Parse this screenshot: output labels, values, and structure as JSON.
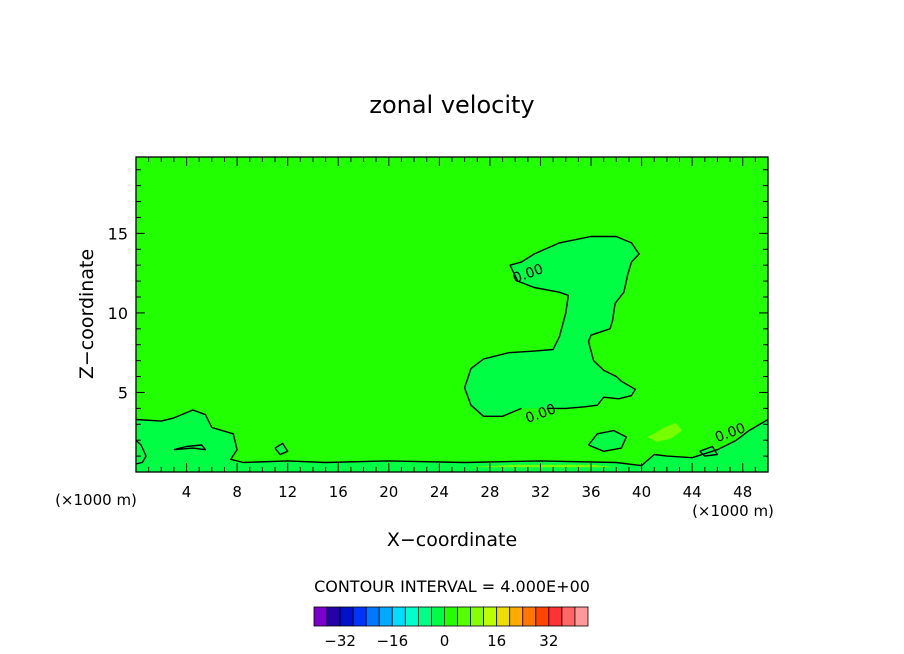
{
  "chart_data": {
    "type": "contour",
    "title": "zonal velocity",
    "xlabel": "X−coordinate",
    "ylabel": "Z−coordinate",
    "x_unit": "(×1000 m)",
    "xlim": [
      0,
      50
    ],
    "ylim": [
      0,
      19.8
    ],
    "xticks": [
      4,
      8,
      12,
      16,
      20,
      24,
      28,
      32,
      36,
      40,
      44,
      48
    ],
    "yticks": [
      5,
      10,
      15
    ],
    "background_field_color": "#22ff00",
    "contour_interval_text": "CONTOUR INTERVAL = 4.000E+00",
    "contour_labels": [
      {
        "text": "0.00",
        "x": 31.0,
        "z": 12.5
      },
      {
        "text": "0.00",
        "x": 32.0,
        "z": 3.7
      },
      {
        "text": "0.00",
        "x": 47.0,
        "z": 2.5
      }
    ],
    "regions": [
      {
        "level": 2,
        "color": "#00ff44",
        "points": [
          [
            30.5,
            4.0
          ],
          [
            29,
            3.5
          ],
          [
            27.5,
            3.5
          ],
          [
            26.5,
            4.2
          ],
          [
            26.0,
            5.3
          ],
          [
            26.5,
            6.5
          ],
          [
            27.5,
            7.1
          ],
          [
            29.5,
            7.5
          ],
          [
            31.5,
            7.6
          ],
          [
            33,
            7.7
          ],
          [
            33.5,
            8.5
          ],
          [
            34,
            10
          ],
          [
            34.2,
            11.1
          ],
          [
            33.5,
            11.3
          ],
          [
            31.5,
            11.6
          ],
          [
            30.2,
            12.0
          ],
          [
            29.6,
            13
          ],
          [
            30.5,
            13.2
          ],
          [
            31.5,
            13.7
          ],
          [
            33.5,
            14.4
          ],
          [
            36,
            14.8
          ],
          [
            38,
            14.8
          ],
          [
            39.2,
            14.4
          ],
          [
            39.8,
            13.7
          ],
          [
            39.2,
            13.2
          ],
          [
            38.9,
            12.4
          ],
          [
            38.6,
            11.3
          ],
          [
            37.9,
            10.6
          ],
          [
            37.7,
            9.5
          ],
          [
            37.5,
            9.0
          ],
          [
            36,
            8.6
          ],
          [
            35.8,
            8.2
          ],
          [
            36.2,
            7.0
          ],
          [
            37,
            6.4
          ],
          [
            38,
            6.0
          ],
          [
            38.4,
            5.7
          ],
          [
            39.5,
            5.2
          ],
          [
            39.2,
            4.8
          ],
          [
            38.2,
            4.6
          ],
          [
            37,
            4.7
          ],
          [
            36.5,
            4.2
          ],
          [
            35.5,
            4.1
          ],
          [
            34,
            4.0
          ],
          [
            32.5,
            4.0
          ]
        ]
      },
      {
        "level": 2,
        "color": "#00ff44",
        "points": [
          [
            0,
            3.3
          ],
          [
            2,
            3.2
          ],
          [
            3,
            3.4
          ],
          [
            4.5,
            3.9
          ],
          [
            5.5,
            3.6
          ],
          [
            6,
            2.8
          ],
          [
            7.7,
            2.4
          ],
          [
            8,
            1.4
          ],
          [
            7.5,
            0.8
          ],
          [
            8.5,
            0.6
          ],
          [
            12,
            0.7
          ],
          [
            15,
            0.6
          ],
          [
            20,
            0.7
          ],
          [
            26,
            0.6
          ],
          [
            32,
            0.7
          ],
          [
            38,
            0.6
          ],
          [
            40,
            0.4
          ],
          [
            41,
            1.1
          ],
          [
            42,
            1.0
          ],
          [
            44,
            0.9
          ],
          [
            46,
            1.4
          ],
          [
            47.5,
            2.0
          ],
          [
            48.5,
            2.6
          ],
          [
            50,
            3.3
          ],
          [
            50,
            0
          ],
          [
            0,
            0
          ]
        ]
      },
      {
        "level": 2,
        "color": "#00ff44",
        "points": [
          [
            35.8,
            1.7
          ],
          [
            36.5,
            2.4
          ],
          [
            37.8,
            2.6
          ],
          [
            38.8,
            2.2
          ],
          [
            38.4,
            1.5
          ],
          [
            37,
            1.3
          ]
        ]
      },
      {
        "level": 2,
        "color": "#00ff44",
        "points": [
          [
            11,
            1.5
          ],
          [
            11.6,
            1.8
          ],
          [
            12,
            1.3
          ],
          [
            11.4,
            1.1
          ]
        ]
      },
      {
        "level": 2,
        "color": "#00ff44",
        "points": [
          [
            44.6,
            1.3
          ],
          [
            45.6,
            1.6
          ],
          [
            46,
            1.1
          ],
          [
            45,
            1.0
          ]
        ]
      },
      {
        "level": 6,
        "color": "#77ff00",
        "points": [
          [
            40.5,
            2.2
          ],
          [
            41.8,
            2.8
          ],
          [
            42.7,
            3.1
          ],
          [
            43.2,
            2.6
          ],
          [
            42.3,
            2.1
          ],
          [
            41.2,
            1.9
          ]
        ]
      },
      {
        "level": 6,
        "color": "#77ff00",
        "points": [
          [
            26,
            0.3
          ],
          [
            30,
            0.45
          ],
          [
            36,
            0.45
          ],
          [
            38,
            0.3
          ]
        ]
      }
    ],
    "contour_lines": [
      {
        "level": 0,
        "points": [
          [
            30.5,
            4.0
          ],
          [
            29,
            3.5
          ],
          [
            27.5,
            3.5
          ],
          [
            26.5,
            4.2
          ],
          [
            26.0,
            5.3
          ],
          [
            26.5,
            6.5
          ],
          [
            27.5,
            7.1
          ],
          [
            29.5,
            7.5
          ],
          [
            31.5,
            7.6
          ],
          [
            33,
            7.7
          ],
          [
            33.5,
            8.5
          ],
          [
            34,
            10
          ],
          [
            34.2,
            11.1
          ],
          [
            33.5,
            11.3
          ],
          [
            31.5,
            11.6
          ],
          [
            30.2,
            12.0
          ],
          [
            29.6,
            13
          ],
          [
            30.5,
            13.2
          ],
          [
            31.5,
            13.7
          ],
          [
            33.5,
            14.4
          ],
          [
            36,
            14.8
          ],
          [
            38,
            14.8
          ],
          [
            39.2,
            14.4
          ],
          [
            39.8,
            13.7
          ],
          [
            39.2,
            13.2
          ],
          [
            38.9,
            12.4
          ],
          [
            38.6,
            11.3
          ],
          [
            37.9,
            10.6
          ],
          [
            37.7,
            9.5
          ],
          [
            37.5,
            9.0
          ],
          [
            36,
            8.6
          ],
          [
            35.8,
            8.2
          ],
          [
            36.2,
            7.0
          ],
          [
            37,
            6.4
          ],
          [
            38,
            6.0
          ],
          [
            38.4,
            5.7
          ],
          [
            39.5,
            5.2
          ],
          [
            39.2,
            4.8
          ],
          [
            38.2,
            4.6
          ],
          [
            37,
            4.7
          ],
          [
            36.5,
            4.2
          ],
          [
            35.5,
            4.1
          ],
          [
            34,
            4.0
          ],
          [
            32.5,
            4.0
          ]
        ]
      },
      {
        "level": 0,
        "points": [
          [
            0,
            3.3
          ],
          [
            2,
            3.2
          ],
          [
            3,
            3.4
          ],
          [
            4.5,
            3.9
          ],
          [
            5.5,
            3.6
          ],
          [
            6,
            2.8
          ],
          [
            7.7,
            2.4
          ],
          [
            8,
            1.4
          ],
          [
            7.5,
            0.8
          ],
          [
            8.5,
            0.6
          ],
          [
            12,
            0.7
          ],
          [
            15,
            0.6
          ],
          [
            20,
            0.7
          ],
          [
            26,
            0.6
          ],
          [
            32,
            0.7
          ],
          [
            38,
            0.6
          ],
          [
            40,
            0.4
          ],
          [
            41,
            1.1
          ],
          [
            42,
            1.0
          ],
          [
            44,
            0.9
          ],
          [
            46,
            1.4
          ],
          [
            47.5,
            2.0
          ],
          [
            48.5,
            2.6
          ],
          [
            50,
            3.3
          ]
        ]
      },
      {
        "level": 0,
        "points": [
          [
            35.8,
            1.7
          ],
          [
            36.5,
            2.4
          ],
          [
            37.8,
            2.6
          ],
          [
            38.8,
            2.2
          ],
          [
            38.4,
            1.5
          ],
          [
            37,
            1.3
          ],
          [
            35.8,
            1.7
          ]
        ]
      },
      {
        "level": 0,
        "points": [
          [
            11,
            1.5
          ],
          [
            11.6,
            1.8
          ],
          [
            12,
            1.3
          ],
          [
            11.4,
            1.1
          ],
          [
            11,
            1.5
          ]
        ]
      },
      {
        "level": 0,
        "points": [
          [
            44.6,
            1.3
          ],
          [
            45.6,
            1.6
          ],
          [
            46,
            1.1
          ],
          [
            45,
            1.0
          ],
          [
            44.6,
            1.3
          ]
        ]
      },
      {
        "level": 0,
        "points": [
          [
            3.0,
            1.4
          ],
          [
            4.5,
            1.5
          ],
          [
            5.5,
            1.4
          ],
          [
            5.2,
            1.7
          ],
          [
            4.0,
            1.6
          ],
          [
            3.0,
            1.4
          ]
        ]
      },
      {
        "level": 0,
        "points": [
          [
            0,
            2.0
          ],
          [
            0.4,
            1.7
          ],
          [
            0.8,
            1.0
          ],
          [
            0.5,
            0.6
          ],
          [
            0,
            0.5
          ]
        ]
      }
    ],
    "colorbar": {
      "colors": [
        "#7a00cc",
        "#2200aa",
        "#0011cc",
        "#0033ff",
        "#0077ff",
        "#00aaff",
        "#00ddff",
        "#00ffcc",
        "#00ff88",
        "#00ff44",
        "#22ff00",
        "#55ff00",
        "#88ff00",
        "#bbff00",
        "#eedd00",
        "#ffaa00",
        "#ff7700",
        "#ff4400",
        "#ff3333",
        "#ff6666",
        "#ff9999"
      ],
      "tick_labels": [
        "−32",
        "−16",
        "0",
        "16",
        "32"
      ],
      "tick_values": [
        -32,
        -16,
        0,
        16,
        32
      ]
    }
  }
}
